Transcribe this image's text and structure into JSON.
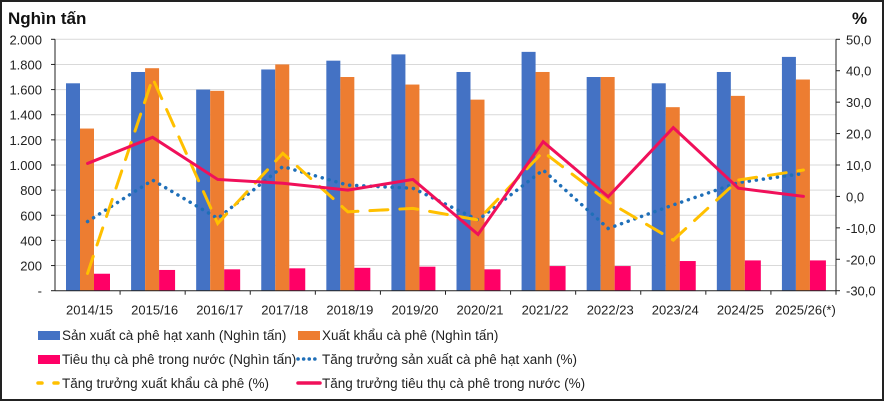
{
  "chart_data": {
    "type": "bar+line",
    "left_axis_label": "Nghìn tấn",
    "right_axis_label": "%",
    "left_ylim": [
      0,
      2000
    ],
    "left_ticks": [
      "-",
      "200",
      "400",
      "600",
      "800",
      "1.000",
      "1.200",
      "1.400",
      "1.600",
      "1.800",
      "2.000"
    ],
    "right_ylim": [
      -30,
      50
    ],
    "right_ticks": [
      "-30,0",
      "-20,0",
      "-10,0",
      "0,0",
      "10,0",
      "20,0",
      "30,0",
      "40,0",
      "50,0"
    ],
    "grid": true,
    "legend_position": "bottom",
    "categories": [
      "2014/15",
      "2015/16",
      "2016/17",
      "2017/18",
      "2018/19",
      "2019/20",
      "2020/21",
      "2021/22",
      "2022/23",
      "2023/24",
      "2024/25",
      "2025/26(*)"
    ],
    "bar_series": [
      {
        "name": "Sản xuất cà phê hạt xanh (Nghìn tấn)",
        "color": "#4472C4",
        "values": [
          1650,
          1740,
          1600,
          1760,
          1830,
          1880,
          1740,
          1900,
          1700,
          1650,
          1740,
          1860
        ]
      },
      {
        "name": "Xuất khẩu cà phê (Nghìn tấn)",
        "color": "#ED7D31",
        "values": [
          1290,
          1770,
          1590,
          1800,
          1700,
          1640,
          1520,
          1740,
          1700,
          1460,
          1550,
          1680
        ]
      },
      {
        "name": "Tiêu thụ cà phê trong nước (Nghìn tấn)",
        "color": "#FF0066",
        "values": [
          135,
          165,
          170,
          178,
          182,
          191,
          170,
          196,
          196,
          236,
          241,
          241
        ]
      }
    ],
    "line_series": [
      {
        "name": "Tăng trưởng sản xuất cà phê hạt xanh (%)",
        "color": "#1F6FB8",
        "style": "dotted",
        "values": [
          -8.0,
          5.2,
          -7.0,
          9.5,
          3.6,
          2.6,
          -7.5,
          8.4,
          -10.2,
          -2.7,
          4.4,
          7.3
        ]
      },
      {
        "name": "Tăng trưởng xuất khẩu cà phê (%)",
        "color": "#FFC000",
        "style": "dashed",
        "values": [
          -24.5,
          37.6,
          -8.6,
          13.7,
          -4.9,
          -3.8,
          -7.5,
          14.2,
          -1.7,
          -13.9,
          5.2,
          8.4
        ]
      },
      {
        "name": "Tăng trưởng tiêu thụ cà phê trong nước (%)",
        "color": "#F0105A",
        "style": "solid",
        "values": [
          10.5,
          18.8,
          5.4,
          4.2,
          2.0,
          5.4,
          -12.1,
          17.4,
          -0.1,
          21.9,
          2.6,
          0.0
        ]
      }
    ]
  }
}
